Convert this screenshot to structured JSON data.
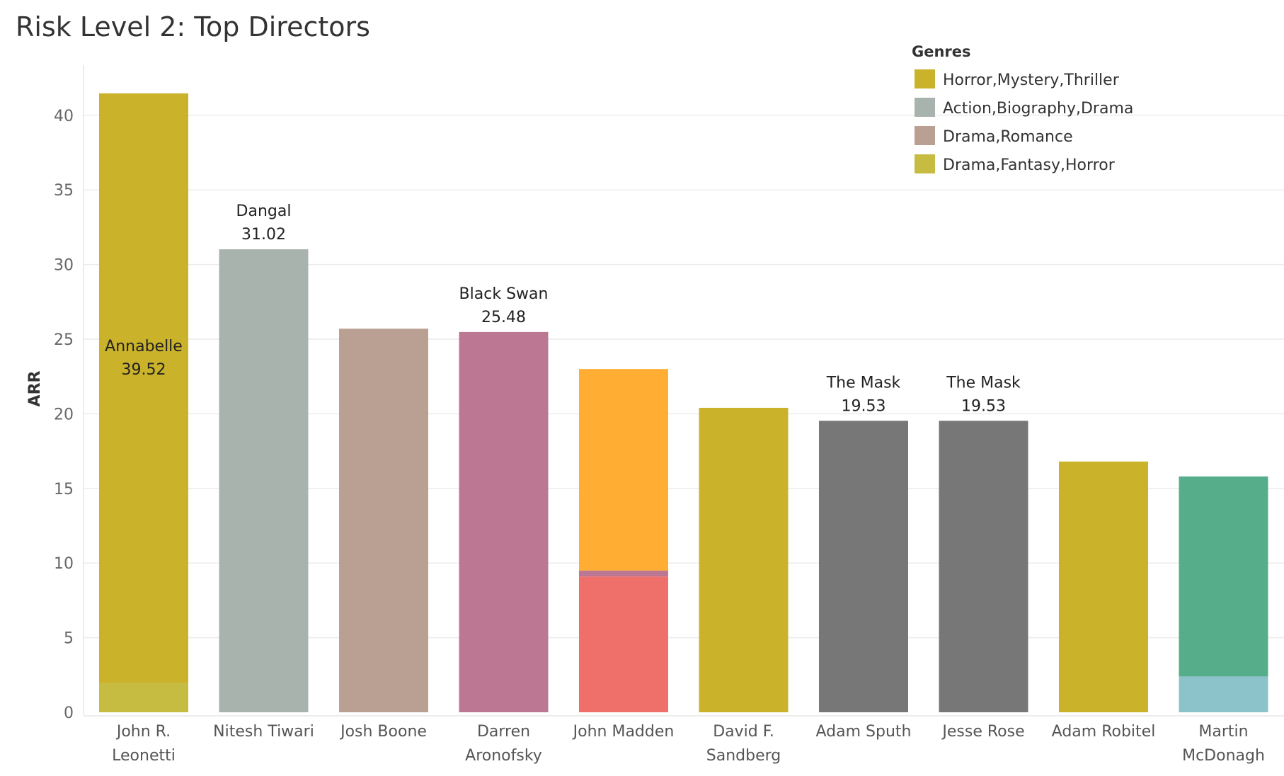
{
  "chart_data": {
    "type": "bar",
    "stacked": true,
    "title": "Risk Level 2: Top Directors",
    "ylabel": "ARR",
    "ylim": [
      0,
      43
    ],
    "yticks": [
      0,
      5,
      10,
      15,
      20,
      25,
      30,
      35,
      40
    ],
    "grid": true,
    "legend_title": "Genres",
    "legend_position": "top-right",
    "legend": [
      {
        "name": "Horror,Mystery,Thriller",
        "color": "#CBB22B"
      },
      {
        "name": "Action,Biography,Drama",
        "color": "#A9B3AD"
      },
      {
        "name": "Drama,Romance",
        "color": "#BA9F93"
      },
      {
        "name": "Drama,Fantasy,Horror",
        "color": "#C6BC42"
      }
    ],
    "categories": [
      [
        "John R.",
        "Leonetti"
      ],
      [
        "Nitesh Tiwari"
      ],
      [
        "Josh Boone"
      ],
      [
        "Darren",
        "Aronofsky"
      ],
      [
        "John Madden"
      ],
      [
        "David F.",
        "Sandberg"
      ],
      [
        "Adam Sputh"
      ],
      [
        "Jesse Rose"
      ],
      [
        "Adam Robitel"
      ],
      [
        "Martin",
        "McDonagh"
      ]
    ],
    "bars": [
      {
        "segments": [
          {
            "value": 1.95,
            "color": "#C6BC42"
          },
          {
            "value": 39.52,
            "color": "#CBB22B"
          }
        ],
        "label": {
          "title": "Annabelle",
          "value": "39.52",
          "position": "inside"
        }
      },
      {
        "segments": [
          {
            "value": 31.02,
            "color": "#A9B3AD"
          }
        ],
        "label": {
          "title": "Dangal",
          "value": "31.02",
          "position": "above"
        }
      },
      {
        "segments": [
          {
            "value": 25.7,
            "color": "#BA9F93"
          }
        ]
      },
      {
        "segments": [
          {
            "value": 25.48,
            "color": "#BC7793"
          }
        ],
        "label": {
          "title": "Black Swan",
          "value": "25.48",
          "position": "above"
        }
      },
      {
        "segments": [
          {
            "value": 9.1,
            "color": "#EF6F6A"
          },
          {
            "value": 0.4,
            "color": "#BC7793"
          },
          {
            "value": 13.5,
            "color": "#FFAD33"
          }
        ]
      },
      {
        "segments": [
          {
            "value": 20.4,
            "color": "#CBB22B"
          }
        ]
      },
      {
        "segments": [
          {
            "value": 19.53,
            "color": "#777777"
          }
        ],
        "label": {
          "title": "The Mask",
          "value": "19.53",
          "position": "above"
        }
      },
      {
        "segments": [
          {
            "value": 19.53,
            "color": "#777777"
          }
        ],
        "label": {
          "title": "The Mask",
          "value": "19.53",
          "position": "above"
        }
      },
      {
        "segments": [
          {
            "value": 16.8,
            "color": "#CBB22B"
          }
        ]
      },
      {
        "segments": [
          {
            "value": 2.4,
            "color": "#8CC2CA"
          },
          {
            "value": 13.4,
            "color": "#56AD8A"
          }
        ]
      }
    ]
  }
}
